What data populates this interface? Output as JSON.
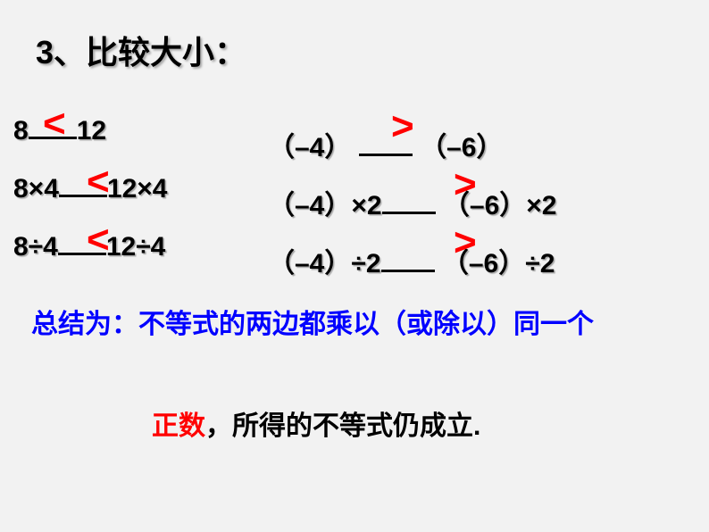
{
  "title": "3、比较大小：",
  "comparisons": {
    "left": {
      "row1": {
        "a": "8",
        "b": "12",
        "symbol": "<"
      },
      "row2": {
        "a": "8×4",
        "b": "12×4",
        "symbol": "<"
      },
      "row3": {
        "a": "8÷4",
        "b": "12÷4",
        "symbol": "<"
      }
    },
    "right": {
      "row1": {
        "a": "（–4）",
        "b": "（–6）",
        "symbol": ">"
      },
      "row2": {
        "a": "（–4）×2",
        "b": "（–6）×2",
        "symbol": ">"
      },
      "row3": {
        "a": "（–4）÷2",
        "b": "（–6）÷2",
        "symbol": ">"
      }
    }
  },
  "summary": "总结为：不等式的两边都乘以（或除以）同一个",
  "conclusion": {
    "highlighted": "正数",
    "rest": "，所得的不等式仍成立."
  },
  "colors": {
    "background": "#f2f2f2",
    "text": "#000000",
    "summary": "#0000ff",
    "symbol": "#ff0000",
    "highlight": "#ff0000"
  }
}
